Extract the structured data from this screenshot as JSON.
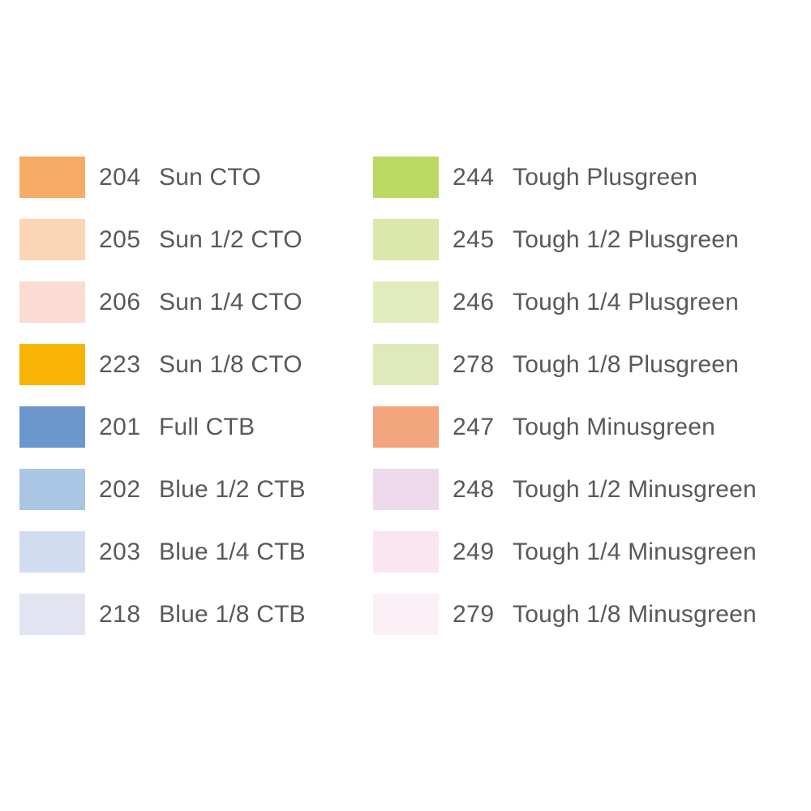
{
  "page": {
    "background_color": "#ffffff",
    "text_color": "#58595b"
  },
  "chart_data": {
    "type": "table",
    "title": "",
    "columns": [
      "code",
      "name",
      "swatch_color"
    ],
    "legend_position": "none",
    "column_groups": [
      {
        "position": "left",
        "rows": [
          {
            "code": "204",
            "name": "Sun CTO",
            "color": "#f5ab66"
          },
          {
            "code": "205",
            "name": "Sun 1/2 CTO",
            "color": "#fad6b6"
          },
          {
            "code": "206",
            "name": "Sun 1/4 CTO",
            "color": "#fadcd5"
          },
          {
            "code": "223",
            "name": "Sun 1/8 CTO",
            "color": "#f8b404"
          },
          {
            "code": "201",
            "name": "Full CTB",
            "color": "#6c97cd"
          },
          {
            "code": "202",
            "name": "Blue 1/2 CTB",
            "color": "#abc6e5"
          },
          {
            "code": "203",
            "name": "Blue 1/4 CTB",
            "color": "#d1ddef"
          },
          {
            "code": "218",
            "name": "Blue 1/8 CTB",
            "color": "#e3e4f2"
          }
        ]
      },
      {
        "position": "right",
        "rows": [
          {
            "code": "244",
            "name": "Tough Plusgreen",
            "color": "#bad962"
          },
          {
            "code": "245",
            "name": "Tough 1/2 Plusgreen",
            "color": "#dae8ab"
          },
          {
            "code": "246",
            "name": "Tough 1/4 Plusgreen",
            "color": "#e0ebbe"
          },
          {
            "code": "278",
            "name": "Tough 1/8 Plusgreen",
            "color": "#dfeabc"
          },
          {
            "code": "247",
            "name": "Tough Minusgreen",
            "color": "#f3a67e"
          },
          {
            "code": "248",
            "name": "Tough 1/2 Minusgreen",
            "color": "#efd9ec"
          },
          {
            "code": "249",
            "name": "Tough 1/4 Minusgreen",
            "color": "#f9e6f1"
          },
          {
            "code": "279",
            "name": "Tough 1/8 Minusgreen",
            "color": "#fcf0f7"
          }
        ]
      }
    ]
  }
}
